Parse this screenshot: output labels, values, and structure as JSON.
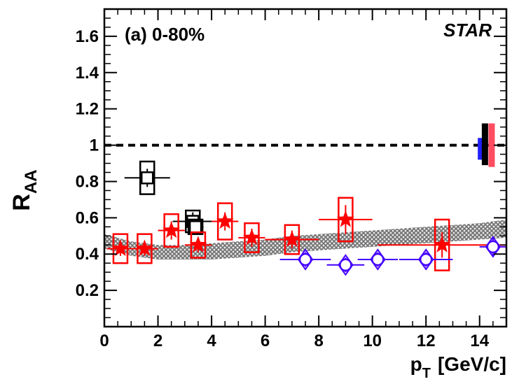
{
  "chart_data": {
    "type": "scatter",
    "panel_label": "(a) 0-80%",
    "experiment_label": "STAR",
    "xlabel": "p",
    "xlabel_sub": "T",
    "xlabel_unit": "[GeV/c]",
    "ylabel": "R",
    "ylabel_sub": "AA",
    "xlim": [
      0,
      15
    ],
    "ylim": [
      0,
      1.75
    ],
    "x_ticks": [
      0,
      2,
      4,
      6,
      8,
      10,
      12,
      14
    ],
    "y_ticks": [
      0.2,
      0.4,
      0.6,
      0.8,
      1,
      1.2,
      1.4,
      1.6
    ],
    "x_tick_labels": [
      "0",
      "2",
      "4",
      "6",
      "8",
      "10",
      "12",
      "14"
    ],
    "y_tick_labels": [
      "0.2",
      "0.4",
      "0.6",
      "0.8",
      "1",
      "1.2",
      "1.4",
      "1.6"
    ],
    "reference_line": {
      "y": 1.0,
      "style": "dashed",
      "color": "#000000"
    },
    "model_band": {
      "color": "#8a8a8a",
      "x": [
        0,
        1,
        2,
        3,
        4,
        5,
        6,
        7,
        8,
        9,
        10,
        11,
        12,
        13,
        14,
        15
      ],
      "lower": [
        0.43,
        0.39,
        0.37,
        0.37,
        0.37,
        0.38,
        0.39,
        0.41,
        0.42,
        0.43,
        0.44,
        0.45,
        0.46,
        0.47,
        0.48,
        0.49
      ],
      "upper": [
        0.51,
        0.47,
        0.45,
        0.45,
        0.46,
        0.47,
        0.48,
        0.5,
        0.51,
        0.52,
        0.53,
        0.54,
        0.55,
        0.56,
        0.57,
        0.59
      ]
    },
    "normalization_boxes": [
      {
        "color": "#2020ff",
        "x": 14.05,
        "low": 0.92,
        "high": 1.04
      },
      {
        "color": "#000000",
        "x": 14.2,
        "low": 0.89,
        "high": 1.12
      },
      {
        "color": "#ff4c61",
        "x": 14.45,
        "low": 0.88,
        "high": 1.12
      }
    ],
    "series": [
      {
        "marker": "open-square",
        "color": "#000000",
        "points": [
          {
            "x": 1.6,
            "y": 0.82,
            "xerr": 0.85,
            "yerr": 0.05,
            "sys": 0.09
          },
          {
            "x": 3.3,
            "y": 0.58,
            "xerr": 0.75,
            "yerr": 0.05,
            "sys": 0.06
          },
          {
            "x": 3.4,
            "y": 0.55,
            "xerr": 0.3,
            "yerr": 0.03,
            "sys": 0.04
          }
        ]
      },
      {
        "marker": "filled-star",
        "color": "#ff0000",
        "points": [
          {
            "x": 0.6,
            "y": 0.43,
            "xerr": 0.5,
            "yerr": 0.04,
            "sys": 0.08
          },
          {
            "x": 1.5,
            "y": 0.43,
            "xerr": 0.5,
            "yerr": 0.04,
            "sys": 0.08
          },
          {
            "x": 2.5,
            "y": 0.53,
            "xerr": 0.5,
            "yerr": 0.05,
            "sys": 0.09
          },
          {
            "x": 3.5,
            "y": 0.45,
            "xerr": 0.5,
            "yerr": 0.04,
            "sys": 0.07
          },
          {
            "x": 4.5,
            "y": 0.58,
            "xerr": 0.5,
            "yerr": 0.05,
            "sys": 0.1
          },
          {
            "x": 5.5,
            "y": 0.49,
            "xerr": 0.5,
            "yerr": 0.05,
            "sys": 0.08
          },
          {
            "x": 7.0,
            "y": 0.48,
            "xerr": 1.0,
            "yerr": 0.05,
            "sys": 0.08
          },
          {
            "x": 9.0,
            "y": 0.59,
            "xerr": 1.0,
            "yerr": 0.08,
            "sys": 0.12
          },
          {
            "x": 12.6,
            "y": 0.45,
            "xerr": 2.4,
            "yerr": 0.07,
            "sys": 0.14
          }
        ]
      },
      {
        "marker": "open-circle-diamond",
        "color": "#4400ff",
        "points": [
          {
            "x": 7.5,
            "y": 0.37,
            "xerr": 0.95,
            "yerr": 0.04,
            "sys": 0.05
          },
          {
            "x": 9.0,
            "y": 0.34,
            "xerr": 0.7,
            "yerr": 0.04,
            "sys": 0.05
          },
          {
            "x": 10.2,
            "y": 0.37,
            "xerr": 0.75,
            "yerr": 0.04,
            "sys": 0.05
          },
          {
            "x": 12.0,
            "y": 0.37,
            "xerr": 1.0,
            "yerr": 0.04,
            "sys": 0.05
          },
          {
            "x": 14.5,
            "y": 0.44,
            "xerr": 0.5,
            "yerr": 0.05,
            "sys": 0.05
          }
        ]
      }
    ]
  }
}
